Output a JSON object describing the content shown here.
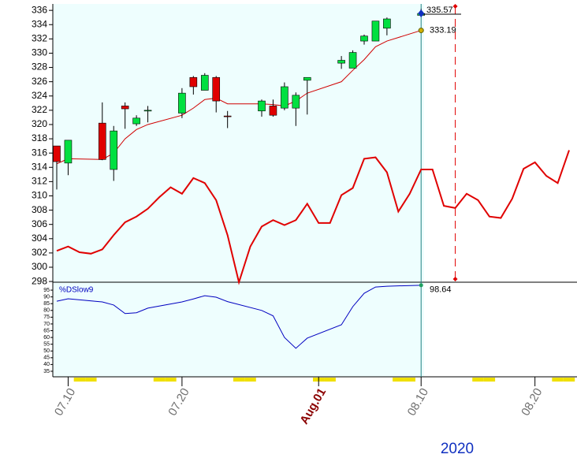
{
  "chart_data": {
    "type": "candlestick",
    "year": "2020",
    "x": [
      "07.09",
      "07.10",
      "07.11",
      "07.12",
      "07.13",
      "07.14",
      "07.15",
      "07.16",
      "07.17",
      "07.18",
      "07.19",
      "07.20",
      "07.21",
      "07.22",
      "07.23",
      "07.24",
      "07.25",
      "07.26",
      "07.27",
      "07.28",
      "07.29",
      "07.30",
      "07.31",
      "08.01",
      "08.02",
      "08.03",
      "08.04",
      "08.05",
      "08.06",
      "08.07",
      "08.08",
      "08.09",
      "08.10",
      "08.11",
      "08.12",
      "08.13",
      "08.14",
      "08.15",
      "08.16",
      "08.17",
      "08.18",
      "08.19",
      "08.20",
      "08.21",
      "08.22",
      "08.23"
    ],
    "xlim": [
      "07.09",
      "08.23"
    ],
    "xticks": [
      "07.10",
      "07.20",
      {
        "value": "08.01",
        "label": "Aug.01"
      },
      "08.10",
      "08.20"
    ],
    "ylim": [
      297.9,
      336.9
    ],
    "yticks": [
      298,
      300,
      302,
      304,
      306,
      308,
      310,
      312,
      314,
      316,
      318,
      320,
      322,
      324,
      326,
      328,
      330,
      332,
      334,
      336
    ],
    "series": [
      {
        "color": "#e00000",
        "values": [
          302.3,
          302.9,
          302.1,
          301.9,
          302.5,
          304.5,
          306.3,
          307.1,
          308.2,
          309.8,
          311.2,
          310.3,
          312.5,
          311.8,
          309.4,
          304.5,
          297.9,
          302.9,
          305.7,
          306.6,
          305.9,
          306.6,
          308.9,
          306.2,
          306.2,
          310.1,
          311.1,
          315.2,
          315.4,
          313.3,
          307.8,
          310.3,
          313.7,
          313.7,
          308.6,
          308.3,
          310.3,
          309.4,
          307.1,
          306.9,
          309.6,
          313.8,
          314.7,
          312.8,
          311.8,
          316.4
        ]
      }
    ],
    "candles": {
      "x": [
        "07.09",
        "07.10",
        "07.13",
        "07.14",
        "07.15",
        "07.16",
        "07.17",
        "07.20",
        "07.21",
        "07.22",
        "07.23",
        "07.24",
        "07.27",
        "07.28",
        "07.29",
        "07.30",
        "07.31",
        "08.03",
        "08.04",
        "08.05",
        "08.06",
        "08.07",
        "08.10"
      ],
      "open": [
        317.0,
        314.6,
        320.2,
        313.7,
        322.6,
        320.1,
        321.9,
        321.6,
        326.6,
        324.8,
        326.6,
        321.2,
        321.9,
        322.6,
        322.3,
        322.3,
        326.2,
        328.6,
        327.9,
        331.7,
        331.7,
        333.5,
        335.3
      ],
      "high": [
        317.0,
        317.8,
        323.1,
        319.8,
        323.1,
        321.3,
        322.6,
        325.1,
        326.8,
        327.2,
        326.8,
        321.9,
        323.5,
        323.5,
        325.9,
        324.5,
        326.6,
        329.6,
        330.4,
        332.6,
        334.5,
        335.0,
        336.2
      ],
      "low": [
        310.9,
        312.9,
        315.0,
        312.1,
        319.4,
        319.8,
        320.3,
        320.9,
        324.2,
        324.8,
        321.7,
        319.5,
        321.1,
        321.1,
        322.0,
        319.8,
        321.4,
        327.8,
        327.9,
        331.2,
        331.7,
        332.5,
        335.3
      ],
      "close": [
        314.8,
        317.8,
        315.1,
        319.1,
        322.2,
        320.9,
        322.0,
        324.4,
        325.3,
        326.9,
        323.3,
        321.1,
        323.3,
        321.3,
        325.3,
        324.1,
        326.6,
        329.0,
        330.1,
        332.4,
        334.5,
        334.8,
        335.57
      ],
      "up_color": "#00e040",
      "down_color": "#e00000"
    },
    "ma": {
      "color": "#d00000",
      "values": [
        314.5,
        315.2,
        315.1,
        316.0,
        318.0,
        319.3,
        320.0,
        321.3,
        322.3,
        323.5,
        323.7,
        322.9,
        322.9,
        322.8,
        322.6,
        323.3,
        324.4,
        326.0,
        327.6,
        329.1,
        330.9,
        331.7,
        333.19
      ]
    },
    "indicator": {
      "name": "%DSlow9",
      "color": "#0000c0",
      "values": [
        86.8,
        88.6,
        86.3,
        84.0,
        77.7,
        78.3,
        81.7,
        86.3,
        88.5,
        90.9,
        89.8,
        86.5,
        80.0,
        76.0,
        60.0,
        52.0,
        59.5,
        69.4,
        82.8,
        92.7,
        97.3,
        97.9,
        98.64
      ],
      "ylim": [
        30.9,
        99.7
      ],
      "yticks": [
        35,
        40,
        45,
        50,
        55,
        60,
        65,
        70,
        75,
        80,
        85,
        90,
        95
      ]
    },
    "cursor_x": "08.13"
  }
}
